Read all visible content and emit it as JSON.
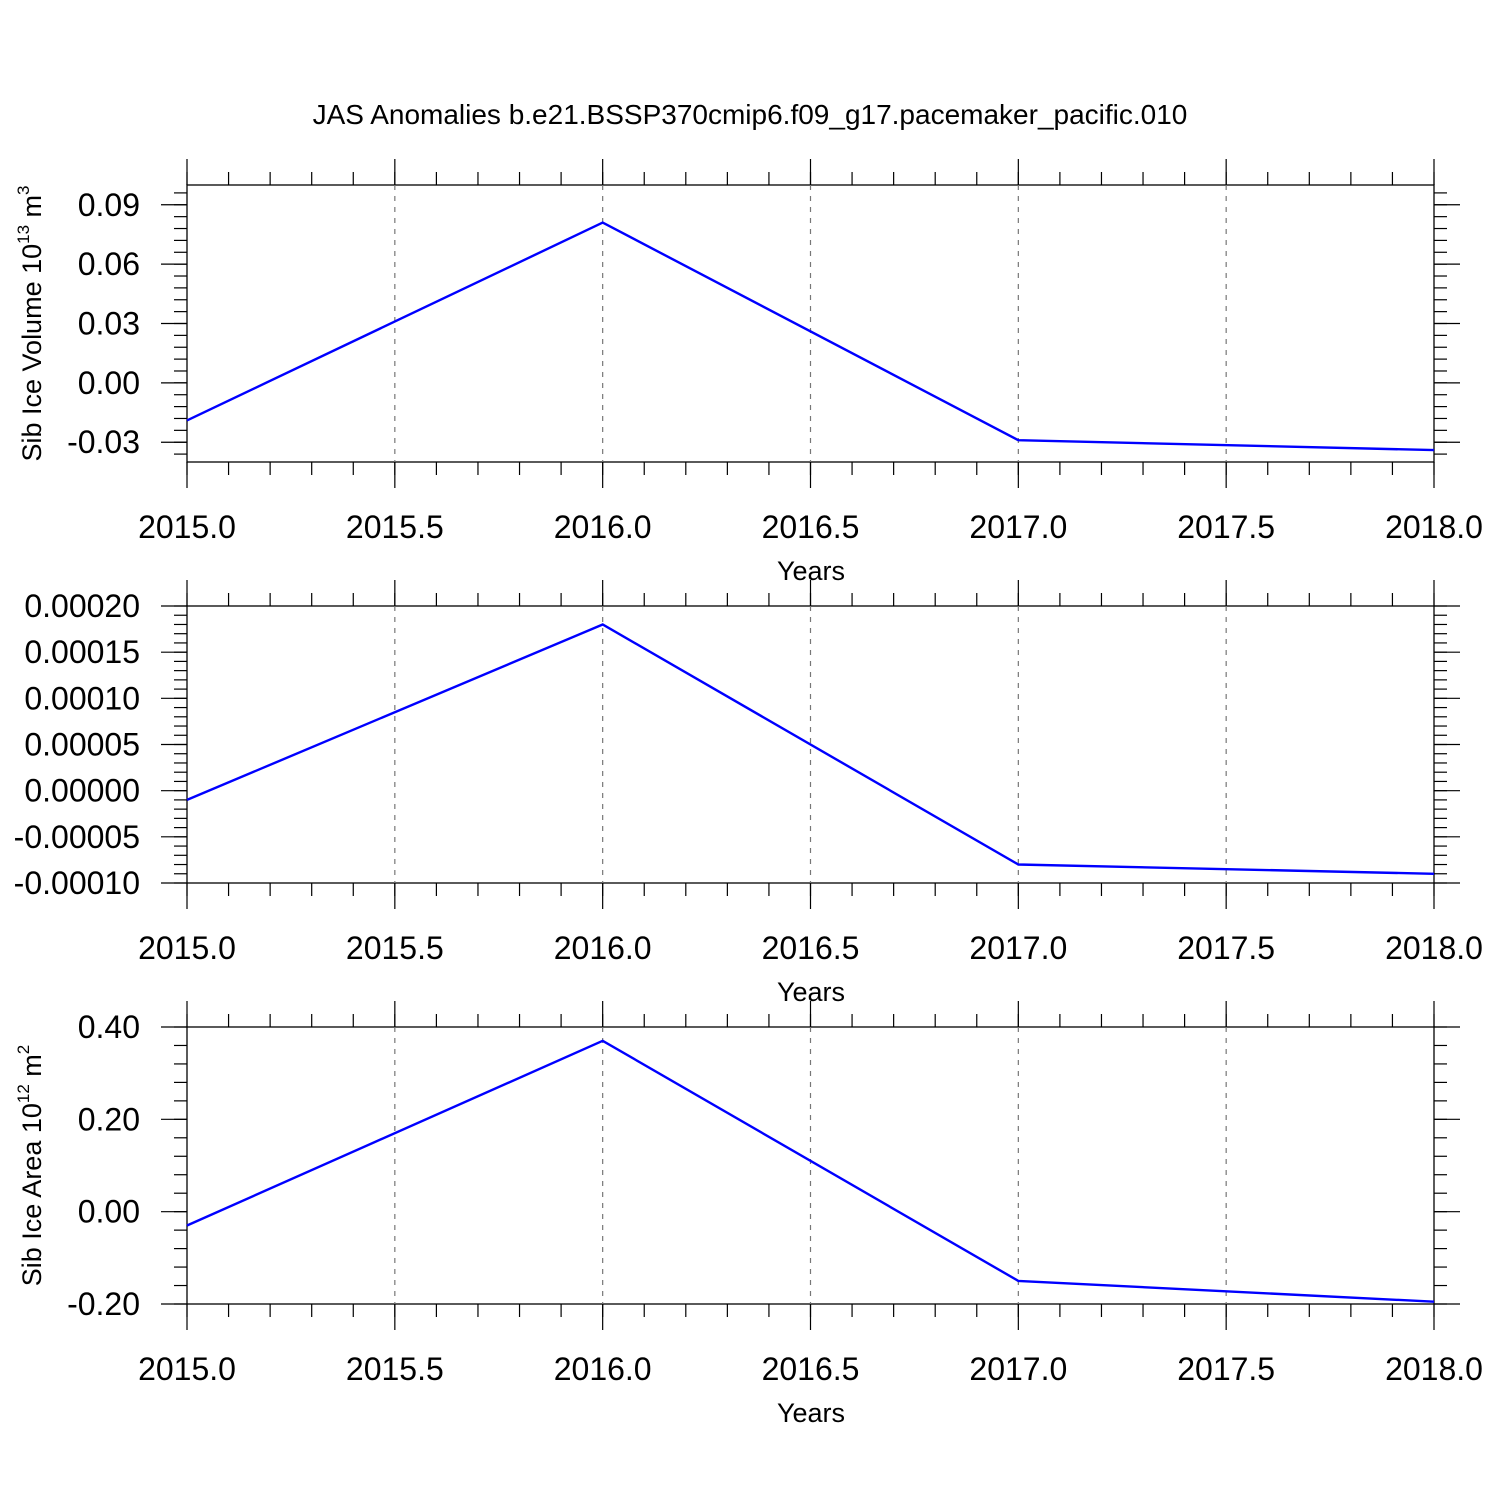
{
  "figure": {
    "title": "JAS Anomalies b.e21.BSSP370cmip6.f09_g17.pacemaker_pacific.010"
  },
  "colors": {
    "series": "#0000ff",
    "axes": "#000000",
    "grid": "#777777"
  },
  "chart_data": [
    {
      "type": "line",
      "xlabel": "Years",
      "ylabel": {
        "text": "Sib Ice Volume 10",
        "exp": "13",
        "unit": " m",
        "unit_exp": "3"
      },
      "x": [
        2015,
        2016,
        2017,
        2018
      ],
      "values": [
        -0.019,
        0.081,
        -0.029,
        -0.034
      ],
      "xlim": [
        2015,
        2018
      ],
      "ylim": [
        -0.04,
        0.1
      ],
      "xticks": [
        2015,
        2015.5,
        2016,
        2016.5,
        2017,
        2017.5,
        2018
      ],
      "xtick_labels": [
        "2015.0",
        "2015.5",
        "2016.0",
        "2016.5",
        "2017.0",
        "2017.5",
        "2018.0"
      ],
      "yticks": [
        -0.03,
        0.0,
        0.03,
        0.06,
        0.09
      ],
      "ytick_labels": [
        "-0.03",
        "0.00",
        "0.03",
        "0.06",
        "0.09"
      ],
      "grid": "vertical dashed"
    },
    {
      "type": "line",
      "xlabel": "Years",
      "ylabel": null,
      "x": [
        2015,
        2016,
        2017,
        2018
      ],
      "values": [
        -1e-05,
        0.00018,
        -8e-05,
        -9e-05
      ],
      "xlim": [
        2015,
        2018
      ],
      "ylim": [
        -0.0001,
        0.0002
      ],
      "xticks": [
        2015,
        2015.5,
        2016,
        2016.5,
        2017,
        2017.5,
        2018
      ],
      "xtick_labels": [
        "2015.0",
        "2015.5",
        "2016.0",
        "2016.5",
        "2017.0",
        "2017.5",
        "2018.0"
      ],
      "yticks": [
        -0.0001,
        -5e-05,
        0.0,
        5e-05,
        0.0001,
        0.00015,
        0.0002
      ],
      "ytick_labels": [
        "-0.00010",
        "-0.00005",
        "0.00000",
        "0.00005",
        "0.00010",
        "0.00015",
        "0.00020"
      ],
      "grid": "vertical dashed"
    },
    {
      "type": "line",
      "xlabel": "Years",
      "ylabel": {
        "text": "Sib Ice Area 10",
        "exp": "12",
        "unit": " m",
        "unit_exp": "2"
      },
      "x": [
        2015,
        2016,
        2017,
        2018
      ],
      "values": [
        -0.03,
        0.37,
        -0.15,
        -0.195
      ],
      "xlim": [
        2015,
        2018
      ],
      "ylim": [
        -0.2,
        0.4
      ],
      "xticks": [
        2015,
        2015.5,
        2016,
        2016.5,
        2017,
        2017.5,
        2018
      ],
      "xtick_labels": [
        "2015.0",
        "2015.5",
        "2016.0",
        "2016.5",
        "2017.0",
        "2017.5",
        "2018.0"
      ],
      "yticks": [
        -0.2,
        0.0,
        0.2,
        0.4
      ],
      "ytick_labels": [
        "-0.20",
        "0.00",
        "0.20",
        "0.40"
      ],
      "grid": "vertical dashed"
    }
  ]
}
